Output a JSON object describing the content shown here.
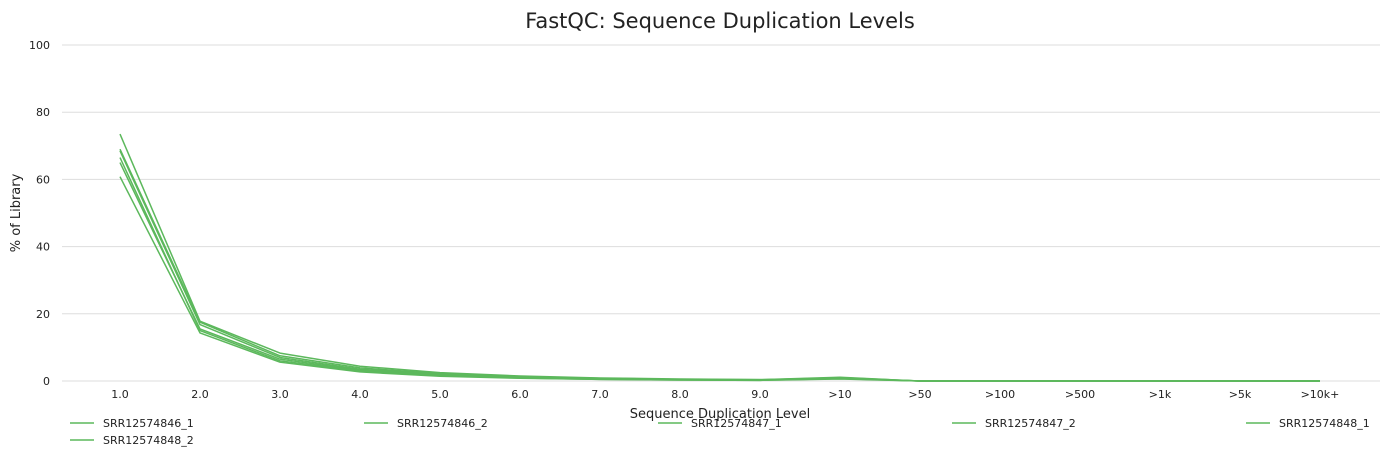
{
  "chart_data": {
    "type": "line",
    "title": "FastQC: Sequence Duplication Levels",
    "xlabel": "Sequence Duplication Level",
    "ylabel": "% of Library",
    "ylim": [
      0,
      100
    ],
    "yticks": [
      "0",
      "20",
      "40",
      "60",
      "80",
      "100"
    ],
    "categories": [
      "1.0",
      "2.0",
      "3.0",
      "4.0",
      "5.0",
      "6.0",
      "7.0",
      "8.0",
      "9.0",
      ">10",
      ">50",
      ">100",
      ">500",
      ">1k",
      ">5k",
      ">10k+"
    ],
    "grid": true,
    "legend_position": "bottom",
    "line_color": "#5cb85c",
    "series": [
      {
        "name": "SRR12574846_1",
        "values": [
          73.5,
          17.8,
          8.3,
          4.4,
          2.5,
          1.5,
          0.9,
          0.6,
          0.4,
          0.9,
          0.0,
          0.0,
          0.0,
          0.0,
          0.0,
          0.0
        ]
      },
      {
        "name": "SRR12574846_2",
        "values": [
          69.0,
          17.5,
          7.5,
          3.9,
          2.2,
          1.3,
          0.8,
          0.5,
          0.4,
          1.1,
          0.0,
          0.0,
          0.0,
          0.0,
          0.0,
          0.0
        ]
      },
      {
        "name": "SRR12574847_1",
        "values": [
          65.0,
          15.5,
          6.5,
          3.2,
          1.8,
          1.0,
          0.6,
          0.4,
          0.3,
          0.8,
          0.0,
          0.0,
          0.0,
          0.0,
          0.0,
          0.0
        ]
      },
      {
        "name": "SRR12574847_2",
        "values": [
          60.8,
          14.3,
          5.6,
          2.7,
          1.4,
          0.8,
          0.5,
          0.3,
          0.2,
          0.6,
          0.0,
          0.0,
          0.0,
          0.0,
          0.0,
          0.0
        ]
      },
      {
        "name": "SRR12574848_1",
        "values": [
          68.5,
          16.8,
          7.0,
          3.5,
          2.0,
          1.2,
          0.7,
          0.4,
          0.3,
          1.0,
          0.0,
          0.0,
          0.0,
          0.0,
          0.0,
          0.0
        ]
      },
      {
        "name": "SRR12574848_2",
        "values": [
          66.5,
          15.0,
          6.0,
          3.0,
          1.6,
          0.9,
          0.5,
          0.3,
          0.2,
          0.7,
          0.0,
          0.0,
          0.0,
          0.0,
          0.0,
          0.0
        ]
      }
    ]
  }
}
